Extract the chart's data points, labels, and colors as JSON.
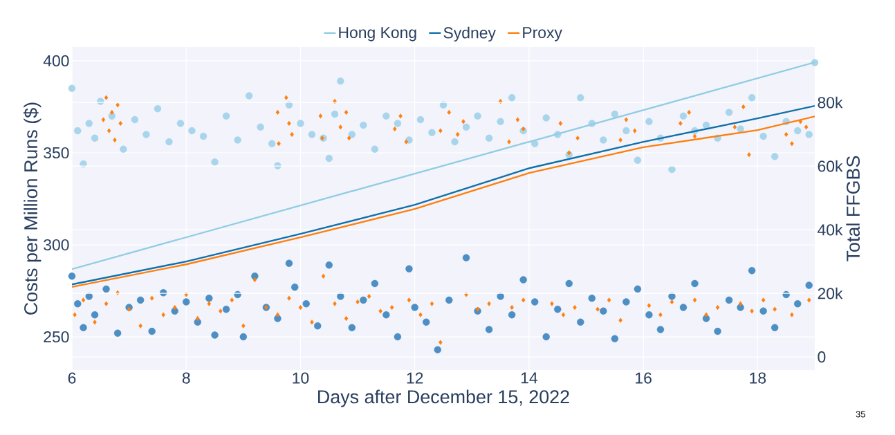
{
  "chart_data": {
    "type": "scatter",
    "xlabel": "Days after December 15, 2022",
    "ylabel": "Costs per Million Runs ($)",
    "y2label": "Total FFGBS",
    "xlim": [
      6,
      19
    ],
    "xticks": [
      6,
      8,
      10,
      12,
      14,
      16,
      18
    ],
    "ylim": [
      232,
      407.5
    ],
    "yticks": [
      250,
      300,
      350,
      400
    ],
    "y2lim": [
      -4100,
      97400
    ],
    "y2ticks": [
      0,
      {
        "value": 20000,
        "label": "20k"
      },
      {
        "value": 40000,
        "label": "40k"
      },
      {
        "value": 60000,
        "label": "60k"
      },
      {
        "value": 80000,
        "label": "80k"
      }
    ],
    "grid": true,
    "legend": "top",
    "annotations": [
      "35"
    ],
    "series": [
      {
        "marker": "circle",
        "color": "#a9d5ec",
        "x": [
          6.0,
          6.1,
          6.2,
          6.3,
          6.4,
          6.5,
          6.7,
          6.9,
          7.1,
          7.3,
          7.5,
          7.7,
          7.9,
          8.1,
          8.3,
          8.5,
          8.7,
          8.9,
          9.1,
          9.3,
          9.5,
          9.6,
          9.8,
          10.0,
          10.2,
          10.4,
          10.5,
          10.6,
          10.7,
          10.9,
          11.1,
          11.3,
          11.5,
          11.7,
          11.9,
          12.1,
          12.3,
          12.5,
          12.7,
          12.9,
          13.1,
          13.3,
          13.5,
          13.7,
          13.9,
          14.1,
          14.3,
          14.5,
          14.7,
          14.9,
          15.1,
          15.3,
          15.5,
          15.7,
          15.9,
          16.1,
          16.3,
          16.5,
          16.7,
          16.9,
          17.1,
          17.3,
          17.5,
          17.7,
          17.9,
          18.1,
          18.3,
          18.5,
          18.7,
          18.9,
          19.0
        ],
        "values": [
          385,
          362,
          344,
          366,
          358,
          378,
          370,
          352,
          368,
          360,
          374,
          356,
          366,
          362,
          359,
          345,
          370,
          357,
          381,
          364,
          355,
          343,
          376,
          366,
          360,
          358,
          347,
          371,
          389,
          360,
          365,
          352,
          370,
          366,
          357,
          368,
          361,
          376,
          356,
          364,
          370,
          358,
          367,
          380,
          362,
          355,
          369,
          360,
          349,
          380,
          366,
          357,
          371,
          362,
          346,
          367,
          358,
          341,
          370,
          362,
          365,
          358,
          372,
          363,
          380,
          359,
          348,
          367,
          362,
          360,
          399
        ]
      },
      {
        "marker": "circle",
        "color": "#4d8fc4",
        "x": [
          6.0,
          6.1,
          6.2,
          6.3,
          6.4,
          6.6,
          6.8,
          7.0,
          7.2,
          7.4,
          7.6,
          7.8,
          8.0,
          8.2,
          8.4,
          8.5,
          8.7,
          8.9,
          9.0,
          9.2,
          9.4,
          9.6,
          9.8,
          9.9,
          10.1,
          10.3,
          10.5,
          10.7,
          10.9,
          11.1,
          11.3,
          11.5,
          11.7,
          11.9,
          12.0,
          12.2,
          12.4,
          12.6,
          12.9,
          13.1,
          13.3,
          13.5,
          13.7,
          13.9,
          14.1,
          14.3,
          14.5,
          14.7,
          14.9,
          15.1,
          15.3,
          15.5,
          15.7,
          15.9,
          16.1,
          16.3,
          16.5,
          16.7,
          16.9,
          17.1,
          17.3,
          17.5,
          17.7,
          17.9,
          18.1,
          18.3,
          18.5,
          18.7,
          18.9
        ],
        "values": [
          283,
          268,
          255,
          272,
          262,
          276,
          252,
          266,
          270,
          253,
          274,
          264,
          269,
          258,
          271,
          251,
          265,
          273,
          250,
          283,
          266,
          260,
          290,
          277,
          268,
          256,
          289,
          272,
          255,
          270,
          279,
          262,
          250,
          287,
          266,
          258,
          243,
          270,
          293,
          264,
          254,
          272,
          262,
          281,
          269,
          250,
          265,
          279,
          258,
          271,
          264,
          249,
          269,
          276,
          262,
          254,
          272,
          266,
          279,
          260,
          253,
          270,
          266,
          286,
          264,
          255,
          273,
          268,
          278
        ]
      },
      {
        "marker": "diamond",
        "color": "#ff7f0e",
        "x": [
          6.55,
          6.6,
          6.65,
          6.7,
          6.75,
          6.8,
          6.85,
          9.6,
          9.62,
          9.75,
          9.8,
          9.85,
          10.35,
          10.38,
          10.6,
          10.7,
          10.8,
          10.85,
          11.65,
          11.75,
          11.85,
          12.45,
          12.6,
          12.75,
          12.85,
          13.5,
          13.65,
          13.8,
          13.9,
          14.55,
          14.7,
          14.85,
          15.6,
          15.7,
          15.85,
          16.65,
          16.8,
          16.9,
          17.6,
          17.75,
          17.85,
          18.5,
          18.6,
          18.75,
          18.85,
          6.05,
          6.2,
          6.4,
          6.6,
          6.8,
          7.0,
          7.2,
          7.4,
          7.6,
          7.8,
          8.0,
          8.2,
          8.4,
          8.6,
          8.8,
          9.0,
          9.2,
          9.4,
          9.6,
          9.8,
          10.0,
          10.2,
          10.4,
          10.6,
          10.8,
          11.0,
          11.2,
          11.4,
          11.6,
          11.9,
          12.1,
          12.3,
          12.45,
          12.9,
          13.1,
          13.3,
          13.7,
          13.9,
          14.4,
          14.6,
          14.8,
          15.2,
          15.4,
          15.6,
          16.1,
          16.3,
          16.5,
          16.9,
          17.1,
          17.3,
          17.7,
          17.9,
          18.1,
          18.3,
          18.6,
          18.9
        ],
        "values": [
          368,
          380,
          362,
          372,
          357,
          376,
          366,
          372,
          355,
          380,
          366,
          360,
          370,
          358,
          378,
          364,
          372,
          358,
          363,
          370,
          356,
          362,
          372,
          360,
          367,
          378,
          356,
          368,
          363,
          366,
          350,
          358,
          357,
          368,
          362,
          366,
          372,
          359,
          364,
          375,
          349,
          360,
          355,
          367,
          364,
          262,
          270,
          258,
          268,
          274,
          265,
          256,
          271,
          262,
          266,
          273,
          260,
          268,
          264,
          270,
          256,
          281,
          266,
          262,
          271,
          266,
          258,
          283,
          268,
          260,
          269,
          272,
          264,
          266,
          270,
          262,
          268,
          247,
          273,
          265,
          268,
          266,
          270,
          268,
          262,
          266,
          265,
          270,
          259,
          267,
          262,
          269,
          270,
          262,
          266,
          268,
          264,
          270,
          265,
          262,
          270
        ]
      },
      {
        "type": "line",
        "name": "Hong Kong",
        "axis": "y2",
        "color": "#92cde3",
        "x": [
          6,
          19
        ],
        "values": [
          27600,
          92600
        ]
      },
      {
        "type": "line",
        "name": "Sydney",
        "axis": "y2",
        "color": "#1170aa",
        "x": [
          6,
          8,
          10,
          12,
          14,
          16,
          18,
          19
        ],
        "values": [
          22800,
          30000,
          38700,
          47800,
          59300,
          67600,
          75000,
          78900
        ]
      },
      {
        "type": "line",
        "name": "Proxy",
        "axis": "y2",
        "color": "#ff7f0e",
        "x": [
          6,
          8,
          10,
          12,
          14,
          16,
          18,
          19
        ],
        "values": [
          22000,
          29100,
          37600,
          46500,
          57800,
          65900,
          71300,
          75600
        ]
      }
    ]
  }
}
